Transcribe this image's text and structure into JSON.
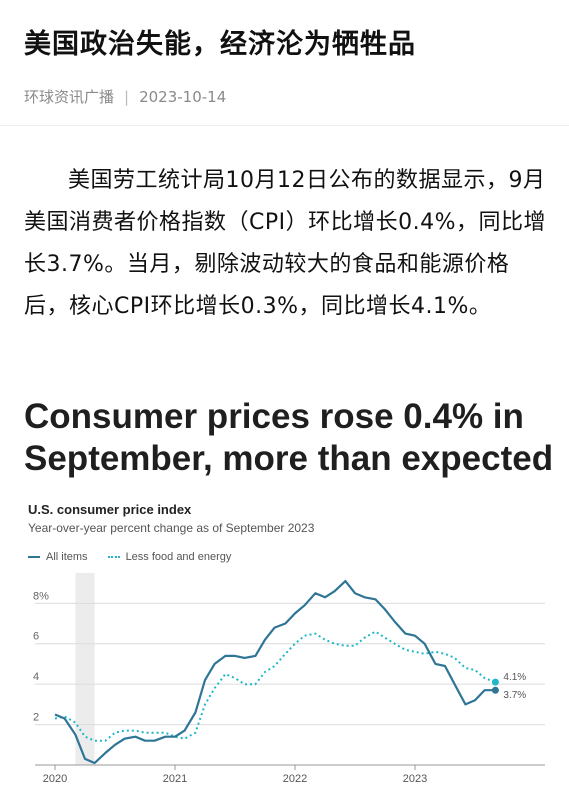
{
  "article": {
    "title": "美国政治失能，经济沦为牺牲品",
    "source": "环球资讯广播",
    "separator": "|",
    "date": "2023-10-14",
    "paragraph": "美国劳工统计局10月12日公布的数据显示，9月美国消费者价格指数（CPI）环比增长0.4%，同比增长3.7%。当月，剔除波动较大的食品和能源价格后，核心CPI环比增长0.3%，同比增长4.1%。",
    "headline": "Consumer prices rose 0.4% in September, more than expected"
  },
  "colors": {
    "all_items": "#2e7596",
    "core": "#1fb7c9",
    "recession_band": "#ececec",
    "grid": "#dcdcdc"
  },
  "chart_data": {
    "type": "line",
    "title": "U.S. consumer price index",
    "subtitle": "Year-over-year percent change as of September 2023",
    "xlim": [
      2020.0,
      2023.75
    ],
    "ylim": [
      0,
      9.5
    ],
    "y_ticks": [
      2,
      4,
      6,
      8
    ],
    "y_tick_labels": [
      "2",
      "4",
      "6",
      "8%"
    ],
    "x_ticks": [
      2020,
      2021,
      2022,
      2023
    ],
    "x_tick_labels": [
      "2020",
      "2021",
      "2022",
      "2023"
    ],
    "recession_band": [
      2020.17,
      2020.33
    ],
    "legend_position": "top-left",
    "series": [
      {
        "name": "All items",
        "style": "solid",
        "end_label": "3.7%",
        "x": [
          2020.0,
          2020.08,
          2020.17,
          2020.25,
          2020.33,
          2020.42,
          2020.5,
          2020.58,
          2020.67,
          2020.75,
          2020.83,
          2020.92,
          2021.0,
          2021.08,
          2021.17,
          2021.25,
          2021.33,
          2021.42,
          2021.5,
          2021.58,
          2021.67,
          2021.75,
          2021.83,
          2021.92,
          2022.0,
          2022.08,
          2022.17,
          2022.25,
          2022.33,
          2022.42,
          2022.5,
          2022.58,
          2022.67,
          2022.75,
          2022.83,
          2022.92,
          2023.0,
          2023.08,
          2023.17,
          2023.25,
          2023.33,
          2023.42,
          2023.5,
          2023.58,
          2023.67
        ],
        "values": [
          2.5,
          2.3,
          1.5,
          0.3,
          0.1,
          0.6,
          1.0,
          1.3,
          1.4,
          1.2,
          1.2,
          1.4,
          1.4,
          1.7,
          2.6,
          4.2,
          5.0,
          5.4,
          5.4,
          5.3,
          5.4,
          6.2,
          6.8,
          7.0,
          7.5,
          7.9,
          8.5,
          8.3,
          8.6,
          9.1,
          8.5,
          8.3,
          8.2,
          7.7,
          7.1,
          6.5,
          6.4,
          6.0,
          5.0,
          4.9,
          4.0,
          3.0,
          3.2,
          3.7,
          3.7
        ]
      },
      {
        "name": "Less food and energy",
        "style": "dotted",
        "end_label": "4.1%",
        "x": [
          2020.0,
          2020.08,
          2020.17,
          2020.25,
          2020.33,
          2020.42,
          2020.5,
          2020.58,
          2020.67,
          2020.75,
          2020.83,
          2020.92,
          2021.0,
          2021.08,
          2021.17,
          2021.25,
          2021.33,
          2021.42,
          2021.5,
          2021.58,
          2021.67,
          2021.75,
          2021.83,
          2021.92,
          2022.0,
          2022.08,
          2022.17,
          2022.25,
          2022.33,
          2022.42,
          2022.5,
          2022.58,
          2022.67,
          2022.75,
          2022.83,
          2022.92,
          2023.0,
          2023.08,
          2023.17,
          2023.25,
          2023.33,
          2023.42,
          2023.5,
          2023.58,
          2023.67
        ],
        "values": [
          2.3,
          2.4,
          2.1,
          1.4,
          1.2,
          1.2,
          1.6,
          1.7,
          1.7,
          1.6,
          1.6,
          1.6,
          1.4,
          1.3,
          1.6,
          3.0,
          3.8,
          4.5,
          4.3,
          4.0,
          4.0,
          4.6,
          4.9,
          5.5,
          6.0,
          6.4,
          6.5,
          6.2,
          6.0,
          5.9,
          5.9,
          6.3,
          6.6,
          6.3,
          6.0,
          5.7,
          5.6,
          5.5,
          5.6,
          5.5,
          5.3,
          4.8,
          4.7,
          4.3,
          4.1
        ]
      }
    ]
  }
}
